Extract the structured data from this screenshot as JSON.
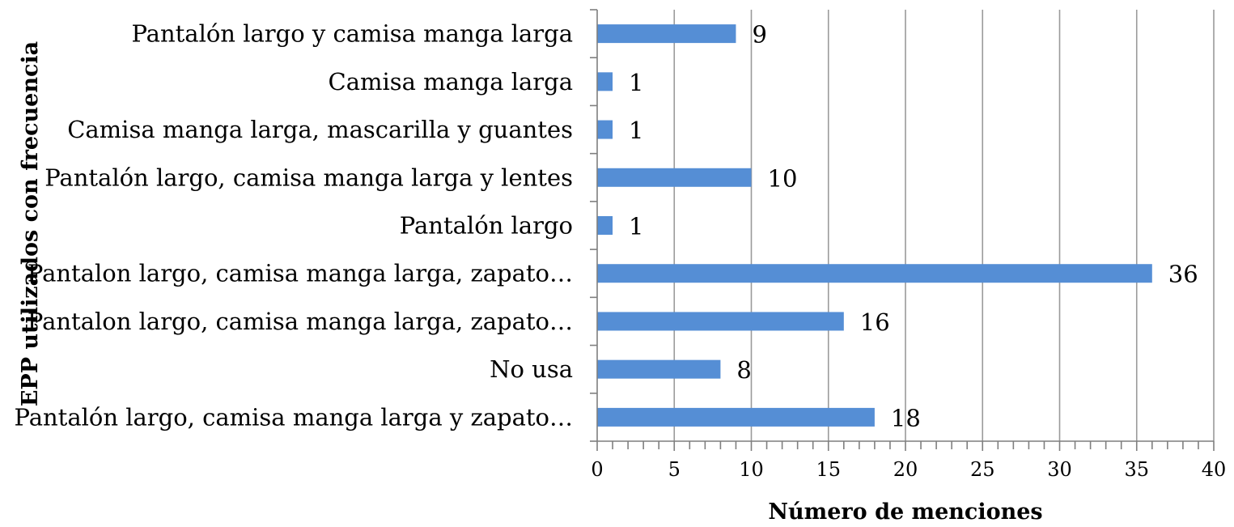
{
  "chart_data": {
    "type": "bar",
    "orientation": "horizontal",
    "categories": [
      "Pantalón largo y camisa manga larga",
      "Camisa manga larga",
      "Camisa manga larga, mascarilla y guantes",
      "Pantalón largo, camisa manga larga y lentes",
      "Pantalón largo",
      "Pantalon largo, camisa manga larga, zapato…",
      "Pantalon largo, camisa manga larga, zapato…",
      "No usa",
      "Pantalón largo, camisa manga larga y zapato…"
    ],
    "values": [
      9,
      1,
      1,
      10,
      1,
      36,
      16,
      8,
      18
    ],
    "value_labels": [
      "9",
      "1",
      "1",
      "10",
      "1",
      "36",
      "16",
      "8",
      "18"
    ],
    "xlabel": "Número de menciones",
    "ylabel": "EPP utilizados con frecuencia",
    "xlim": [
      0,
      40
    ],
    "x_ticks": [
      "0",
      "5",
      "10",
      "15",
      "20",
      "25",
      "30",
      "35",
      "40"
    ],
    "grid": "vertical",
    "bar_color": "#558ed5",
    "legend": "none"
  }
}
